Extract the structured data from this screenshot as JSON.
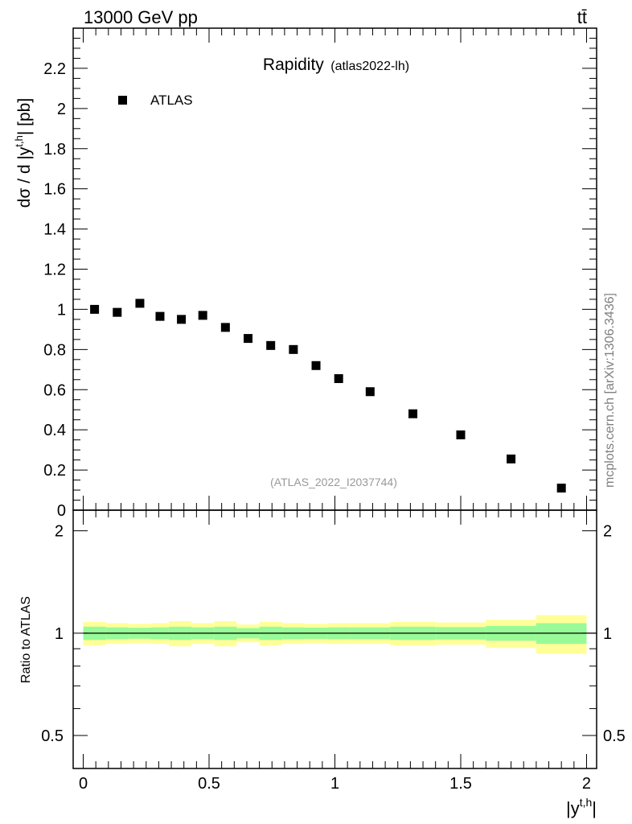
{
  "header": {
    "energy": "13000 GeV pp",
    "process": "tt̄"
  },
  "watermark": "mcplots.cern.ch [arXiv:1306.3436]",
  "colors": {
    "inner_band": "#98fb98",
    "outer_band": "#ffff99",
    "marker": "#000000"
  },
  "chart_data": [
    {
      "type": "scatter",
      "title": "Rapidity",
      "subtitle": "(atlas2022-lh)",
      "ylabel": "dσ / d |y^{t,h}| [pb]",
      "analysis_label": "(ATLAS_2022_I2037744)",
      "legend": [
        {
          "label": "ATLAS",
          "marker": "square"
        }
      ],
      "legend_placement": "top-left",
      "xlim": [
        -0.04,
        2.04
      ],
      "ylim": [
        0,
        2.4
      ],
      "ytick_labels": [
        "0",
        "0.2",
        "0.4",
        "0.6",
        "0.8",
        "1",
        "1.2",
        "1.4",
        "1.6",
        "1.8",
        "2",
        "2.2"
      ],
      "series": [
        {
          "name": "ATLAS",
          "x": [
            0.045,
            0.135,
            0.225,
            0.305,
            0.39,
            0.475,
            0.565,
            0.655,
            0.745,
            0.835,
            0.925,
            1.015,
            1.14,
            1.31,
            1.5,
            1.7,
            1.9
          ],
          "y": [
            1.0,
            0.985,
            1.03,
            0.965,
            0.95,
            0.97,
            0.91,
            0.855,
            0.82,
            0.8,
            0.72,
            0.655,
            0.59,
            0.48,
            0.375,
            0.255,
            0.11
          ]
        }
      ]
    },
    {
      "type": "area",
      "ylabel": "Ratio to ATLAS",
      "xlabel": "|y^{t,h}|",
      "xlim": [
        -0.04,
        2.04
      ],
      "ylim": [
        0.4,
        2.3
      ],
      "ytick_labels": [
        "0.5",
        "1",
        "2"
      ],
      "xtick_labels": [
        "0",
        "0.5",
        "1",
        "1.5",
        "2"
      ],
      "reference_line": 1,
      "bins": [
        {
          "x0": 0.0,
          "x1": 0.09,
          "inner": [
            0.955,
            1.045
          ],
          "outer": [
            0.92,
            1.08
          ]
        },
        {
          "x0": 0.09,
          "x1": 0.18,
          "inner": [
            0.96,
            1.04
          ],
          "outer": [
            0.93,
            1.07
          ]
        },
        {
          "x0": 0.18,
          "x1": 0.27,
          "inner": [
            0.963,
            1.037
          ],
          "outer": [
            0.935,
            1.065
          ]
        },
        {
          "x0": 0.27,
          "x1": 0.34,
          "inner": [
            0.96,
            1.04
          ],
          "outer": [
            0.93,
            1.07
          ]
        },
        {
          "x0": 0.34,
          "x1": 0.43,
          "inner": [
            0.955,
            1.045
          ],
          "outer": [
            0.915,
            1.085
          ]
        },
        {
          "x0": 0.43,
          "x1": 0.52,
          "inner": [
            0.96,
            1.04
          ],
          "outer": [
            0.93,
            1.07
          ]
        },
        {
          "x0": 0.52,
          "x1": 0.61,
          "inner": [
            0.955,
            1.045
          ],
          "outer": [
            0.915,
            1.085
          ]
        },
        {
          "x0": 0.61,
          "x1": 0.7,
          "inner": [
            0.965,
            1.035
          ],
          "outer": [
            0.94,
            1.06
          ]
        },
        {
          "x0": 0.7,
          "x1": 0.79,
          "inner": [
            0.955,
            1.045
          ],
          "outer": [
            0.92,
            1.08
          ]
        },
        {
          "x0": 0.79,
          "x1": 0.88,
          "inner": [
            0.96,
            1.04
          ],
          "outer": [
            0.93,
            1.07
          ]
        },
        {
          "x0": 0.88,
          "x1": 0.97,
          "inner": [
            0.962,
            1.038
          ],
          "outer": [
            0.935,
            1.065
          ]
        },
        {
          "x0": 0.97,
          "x1": 1.06,
          "inner": [
            0.96,
            1.04
          ],
          "outer": [
            0.93,
            1.07
          ]
        },
        {
          "x0": 1.06,
          "x1": 1.22,
          "inner": [
            0.96,
            1.04
          ],
          "outer": [
            0.93,
            1.07
          ]
        },
        {
          "x0": 1.22,
          "x1": 1.4,
          "inner": [
            0.955,
            1.045
          ],
          "outer": [
            0.92,
            1.08
          ]
        },
        {
          "x0": 1.4,
          "x1": 1.6,
          "inner": [
            0.958,
            1.042
          ],
          "outer": [
            0.925,
            1.075
          ]
        },
        {
          "x0": 1.6,
          "x1": 1.8,
          "inner": [
            0.95,
            1.05
          ],
          "outer": [
            0.905,
            1.095
          ]
        },
        {
          "x0": 1.8,
          "x1": 2.0,
          "inner": [
            0.93,
            1.07
          ],
          "outer": [
            0.87,
            1.13
          ]
        }
      ]
    }
  ]
}
